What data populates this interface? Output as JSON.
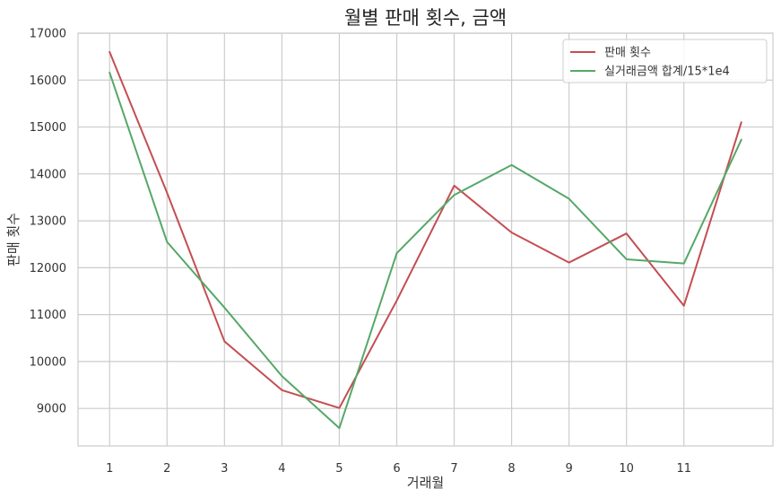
{
  "chart_data": {
    "type": "line",
    "title": "월별 판매 횟수, 금액",
    "xlabel": "거래월",
    "ylabel": "판매 횟수",
    "x": [
      1,
      2,
      3,
      4,
      5,
      6,
      7,
      8,
      9,
      10,
      11,
      12
    ],
    "xticks": [
      "1",
      "2",
      "3",
      "4",
      "5",
      "6",
      "7",
      "8",
      "9",
      "10",
      "11"
    ],
    "xlim": [
      0.45,
      12.55
    ],
    "ylim": [
      8200,
      17000
    ],
    "yticks": [
      9000,
      10000,
      11000,
      12000,
      13000,
      14000,
      15000,
      16000,
      17000
    ],
    "grid": true,
    "legend_position": "top-right",
    "series": [
      {
        "name": "판매 횟수",
        "color": "#c44e52",
        "values": [
          16600,
          13600,
          10430,
          9390,
          9010,
          11300,
          13750,
          12750,
          12110,
          12730,
          11190,
          15100
        ]
      },
      {
        "name": "실거래금액 합계/15*1e4",
        "color": "#55a868",
        "values": [
          16160,
          12550,
          11150,
          9690,
          8580,
          12310,
          13550,
          14190,
          13470,
          12180,
          12090,
          14730
        ]
      }
    ]
  }
}
